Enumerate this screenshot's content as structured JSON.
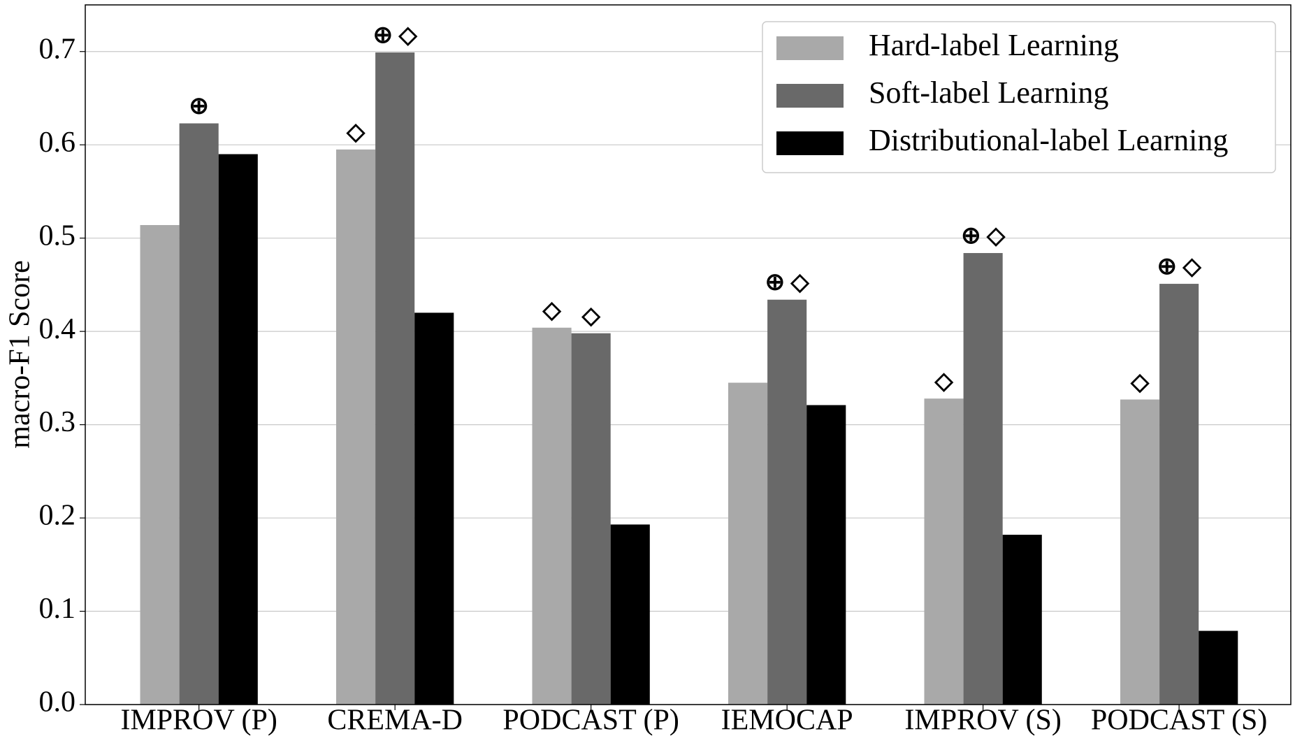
{
  "chart_data": {
    "type": "bar",
    "y_label": "macro-F1 Score",
    "categories": [
      "IMPROV (P)",
      "CREMA-D",
      "PODCAST (P)",
      "IEMOCAP",
      "IMPROV (S)",
      "PODCAST (S)"
    ],
    "series": [
      {
        "name": "Hard-label Learning",
        "color": "#a9a9a9",
        "values": [
          0.514,
          0.595,
          0.404,
          0.345,
          0.328,
          0.327
        ],
        "annotations": [
          null,
          "◇",
          "◇",
          null,
          "◇",
          "◇"
        ]
      },
      {
        "name": "Soft-label Learning",
        "color": "#696969",
        "values": [
          0.623,
          0.699,
          0.398,
          0.434,
          0.484,
          0.451
        ],
        "annotations": [
          "⊕",
          "⊕ ◇",
          "◇",
          "⊕ ◇",
          "⊕ ◇",
          "⊕ ◇"
        ]
      },
      {
        "name": "Distributional-label Learning",
        "color": "#000000",
        "values": [
          0.59,
          0.42,
          0.193,
          0.321,
          0.182,
          0.079
        ],
        "annotations": [
          null,
          null,
          null,
          null,
          null,
          null
        ]
      }
    ],
    "ylim": [
      0,
      0.75
    ],
    "yticks": [
      {
        "value": 0,
        "label": "0.0"
      },
      0.1,
      0.2,
      0.3,
      0.4,
      0.5,
      0.6,
      0.7
    ],
    "grid": true,
    "legend": "upper right"
  }
}
